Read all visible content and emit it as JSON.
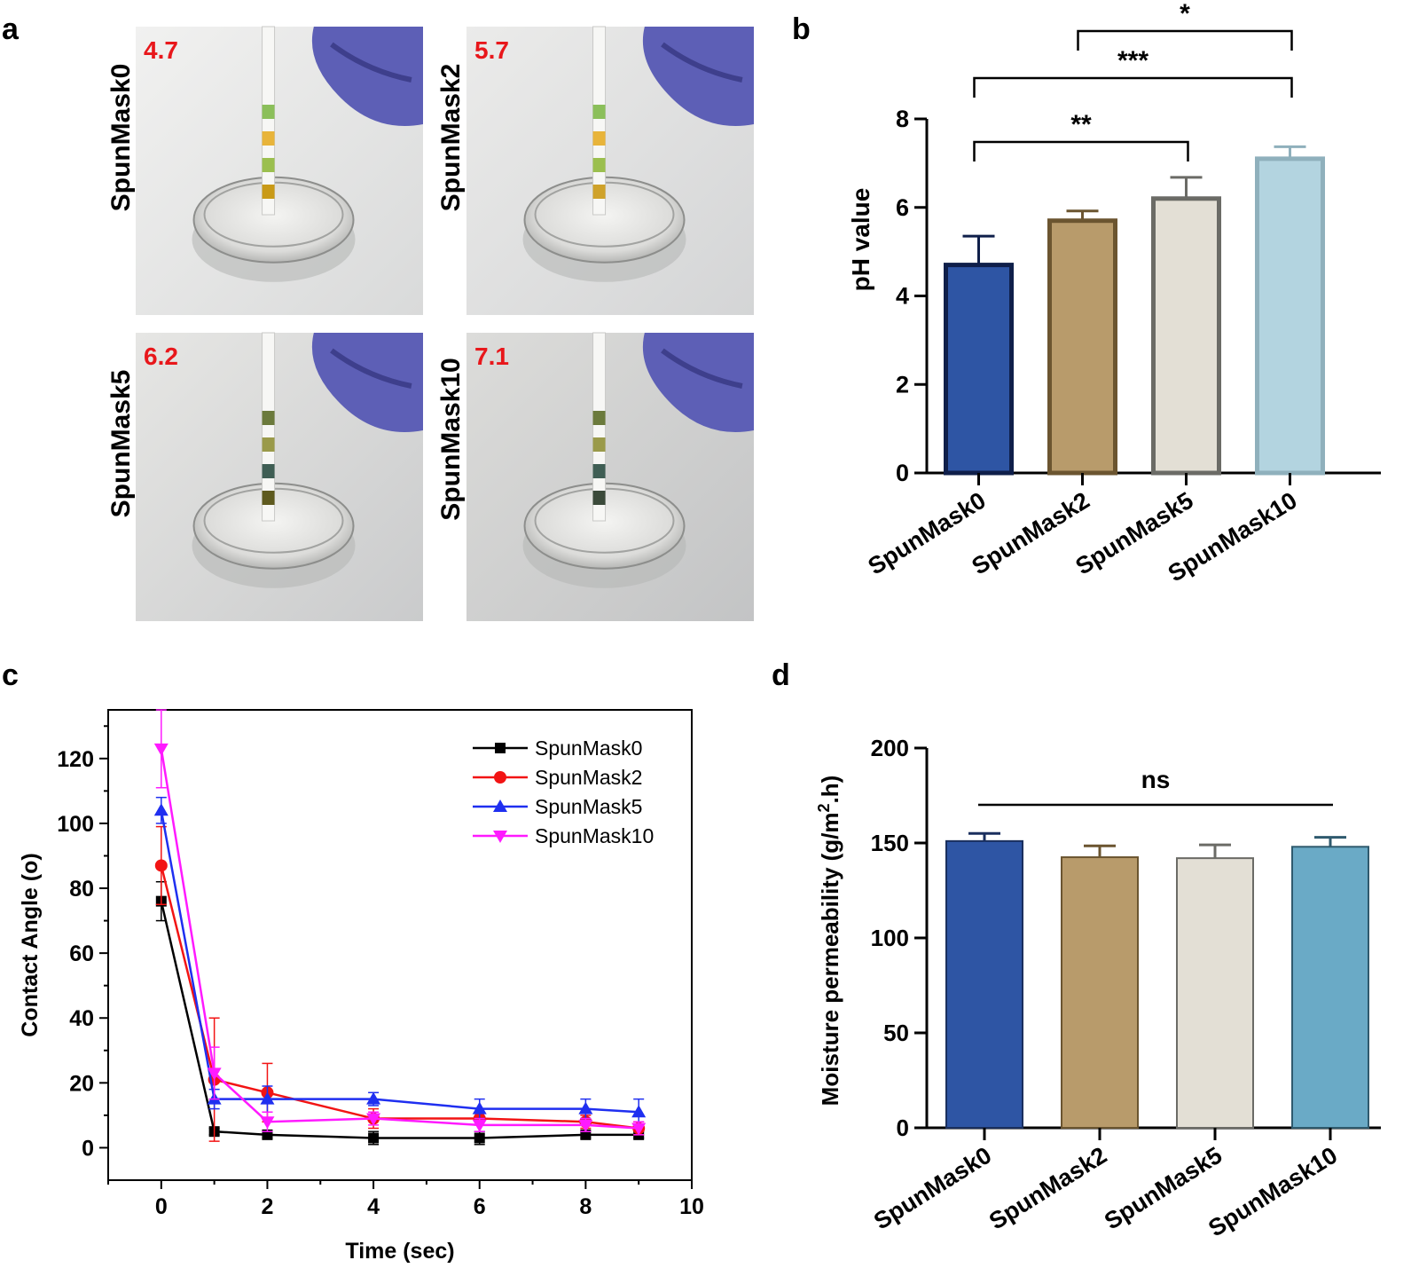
{
  "panels": {
    "a": "a",
    "b": "b",
    "c": "c",
    "d": "d"
  },
  "photos": [
    {
      "label": "SpunMask0",
      "ph": "4.7",
      "liquid": "#c99a17"
    },
    {
      "label": "SpunMask2",
      "ph": "5.7",
      "liquid": "#cfa22a"
    },
    {
      "label": "SpunMask5",
      "ph": "6.2",
      "liquid": "#5e5a1e"
    },
    {
      "label": "SpunMask10",
      "ph": "7.1",
      "liquid": "#3b4a3a"
    }
  ],
  "chart_data": [
    {
      "panel": "b",
      "type": "bar",
      "categories": [
        "SpunMask0",
        "SpunMask2",
        "SpunMask5",
        "SpunMask10"
      ],
      "values": [
        4.7,
        5.7,
        6.2,
        7.1
      ],
      "errors": [
        0.65,
        0.22,
        0.48,
        0.27
      ],
      "ylabel": "pH value",
      "xlabel": "",
      "ylim": [
        0,
        8
      ],
      "yticks": [
        "0",
        "2",
        "4",
        "6",
        "8"
      ],
      "fill_colors": [
        "#2e55a4",
        "#b89b6b",
        "#e3dfd5",
        "#b3d4e0"
      ],
      "edge_colors": [
        "#0f1f4a",
        "#6b5530",
        "#6b6b66",
        "#8fb0bc"
      ],
      "significance": [
        {
          "from": 0,
          "to": 2,
          "label": "**"
        },
        {
          "from": 0,
          "to": 3,
          "label": "***"
        },
        {
          "from": 1,
          "to": 3,
          "label": "*"
        }
      ]
    },
    {
      "panel": "c",
      "type": "line",
      "xlabel": "Time (sec)",
      "ylabel": "Contact Angle (o)",
      "xlim": [
        -1,
        10
      ],
      "ylim": [
        -10,
        135
      ],
      "xticks": [
        "0",
        "2",
        "4",
        "6",
        "8",
        "10"
      ],
      "yticks": [
        "0",
        "20",
        "40",
        "60",
        "80",
        "100",
        "120"
      ],
      "legend_position": "top-right",
      "x": [
        0,
        1,
        2,
        4,
        6,
        8,
        9
      ],
      "series": [
        {
          "name": "SpunMask0",
          "color": "#000000",
          "marker": "square",
          "values": [
            76,
            5,
            4,
            3,
            3,
            4,
            4
          ],
          "errors": [
            6,
            1,
            1,
            2,
            2,
            1,
            1
          ]
        },
        {
          "name": "SpunMask2",
          "color": "#f21414",
          "marker": "circle",
          "values": [
            87,
            21,
            17,
            9,
            9,
            8,
            6
          ],
          "errors": [
            12,
            19,
            9,
            3,
            2,
            2,
            2
          ]
        },
        {
          "name": "SpunMask5",
          "color": "#1f2ff0",
          "marker": "triangle-up",
          "values": [
            104,
            15,
            15,
            15,
            12,
            12,
            11
          ],
          "errors": [
            4,
            3,
            4,
            2,
            3,
            3,
            4
          ]
        },
        {
          "name": "SpunMask10",
          "color": "#ff1aff",
          "marker": "triangle-down",
          "values": [
            123,
            23,
            8,
            9,
            7,
            7,
            6
          ],
          "errors": [
            12,
            8,
            3,
            2,
            2,
            2,
            2
          ]
        }
      ]
    },
    {
      "panel": "d",
      "type": "bar",
      "categories": [
        "SpunMask0",
        "SpunMask2",
        "SpunMask5",
        "SpunMask10"
      ],
      "values": [
        151,
        142.5,
        142,
        148
      ],
      "errors": [
        4,
        6,
        7,
        5
      ],
      "ylabel_main": "Moisture permeability (g/m",
      "ylabel_sup": "2",
      "ylabel_end": ".h)",
      "xlabel": "",
      "ylim": [
        0,
        200
      ],
      "yticks": [
        "0",
        "50",
        "100",
        "150",
        "200"
      ],
      "fill_colors": [
        "#2e55a4",
        "#b89b6b",
        "#e3dfd5",
        "#6aaac6"
      ],
      "edge_colors": [
        "#1a2f5e",
        "#6b5530",
        "#6b6b66",
        "#2f5a6e"
      ],
      "significance": [
        {
          "from": 0,
          "to": 3,
          "label": "ns"
        }
      ]
    }
  ]
}
